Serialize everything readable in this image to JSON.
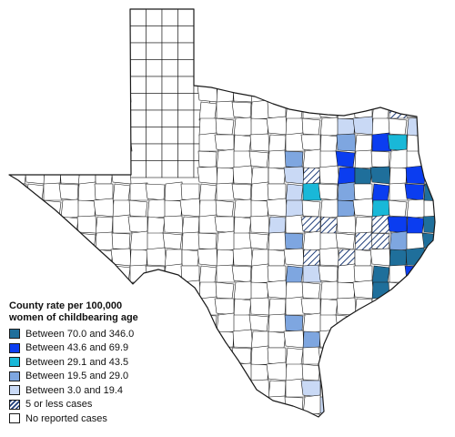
{
  "legend": {
    "title_line1": "County rate per 100,000",
    "title_line2": "women of childbearing age",
    "items": [
      {
        "label": "Between 70.0 and 346.0",
        "color": "#1f6f9b",
        "pattern": "solid"
      },
      {
        "label": "Between 43.6 and 69.9",
        "color": "#0b3df0",
        "pattern": "solid"
      },
      {
        "label": "Between 29.1 and 43.5",
        "color": "#19b8d8",
        "pattern": "solid"
      },
      {
        "label": "Between 19.5 and 29.0",
        "color": "#7ea6e0",
        "pattern": "solid"
      },
      {
        "label": "Between 3.0 and 19.4",
        "color": "#c9d9f5",
        "pattern": "solid"
      },
      {
        "label": "5 or less cases",
        "color": "#1e3d7a",
        "pattern": "hatch"
      },
      {
        "label": "No reported cases",
        "color": "#ffffff",
        "pattern": "solid"
      }
    ]
  }
}
